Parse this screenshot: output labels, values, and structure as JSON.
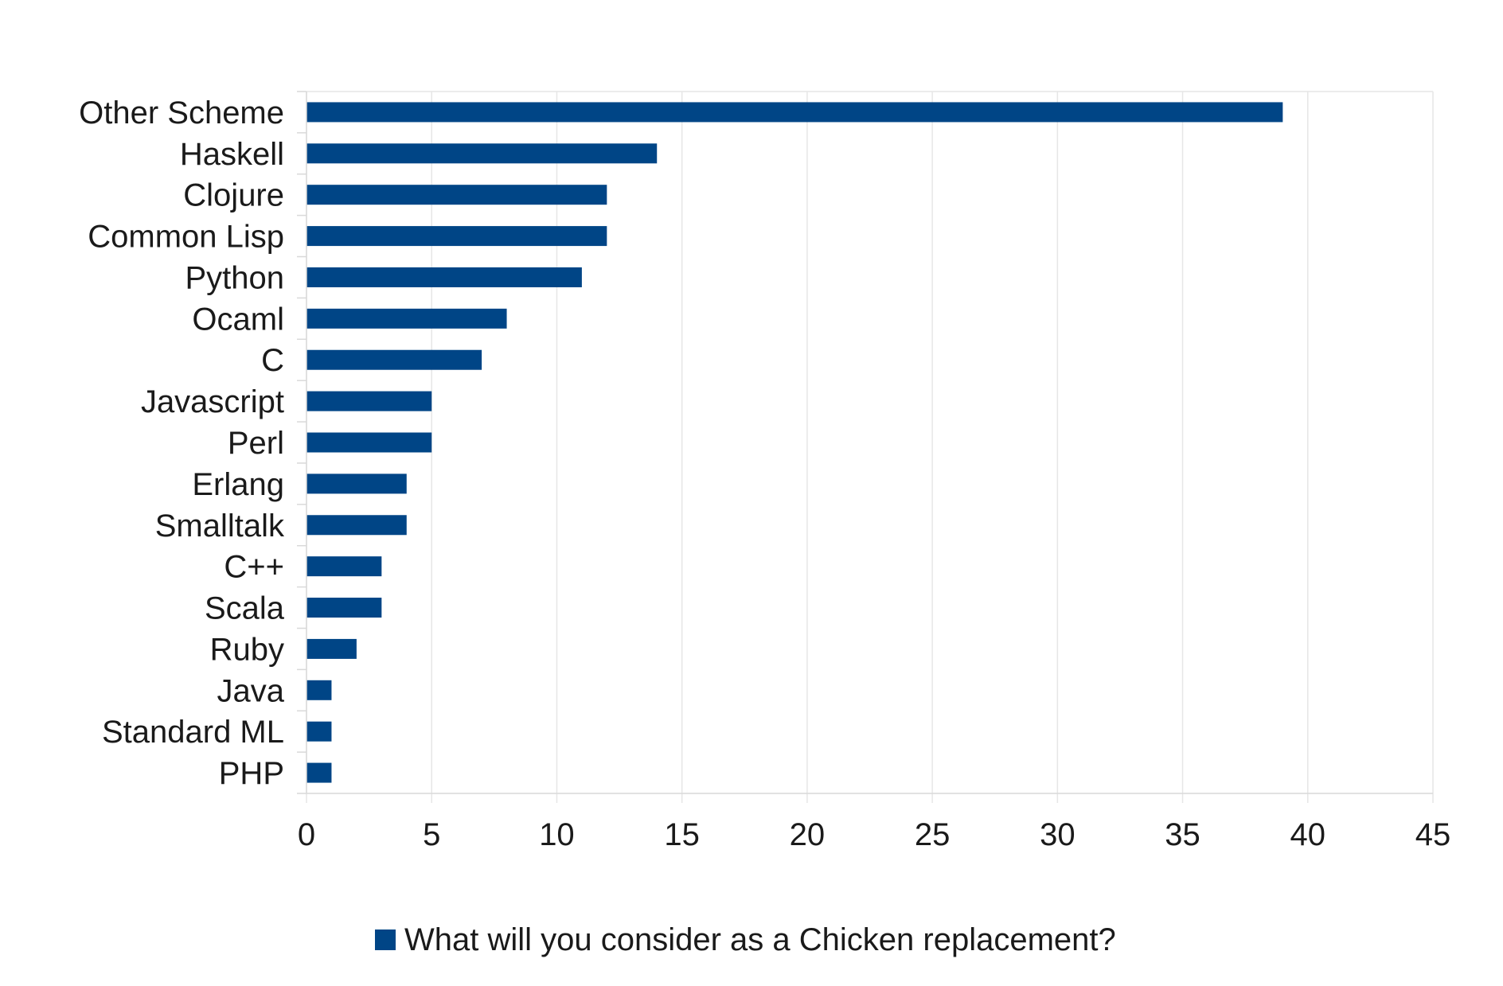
{
  "chart_data": {
    "type": "bar",
    "orientation": "horizontal",
    "categories": [
      "Other Scheme",
      "Haskell",
      "Clojure",
      "Common Lisp",
      "Python",
      "Ocaml",
      "C",
      "Javascript",
      "Perl",
      "Erlang",
      "Smalltalk",
      "C++",
      "Scala",
      "Ruby",
      "Java",
      "Standard ML",
      "PHP"
    ],
    "series": [
      {
        "name": "What will you consider as a Chicken replacement?",
        "values": [
          39,
          14,
          12,
          12,
          11,
          8,
          7,
          5,
          5,
          4,
          4,
          3,
          3,
          2,
          1,
          1,
          1
        ],
        "color": "#004586"
      }
    ],
    "xlim": [
      0,
      45
    ],
    "xticks": [
      "0",
      "5",
      "10",
      "15",
      "20",
      "25",
      "30",
      "35",
      "40",
      "45"
    ],
    "grid": true,
    "legend": "bottom"
  }
}
